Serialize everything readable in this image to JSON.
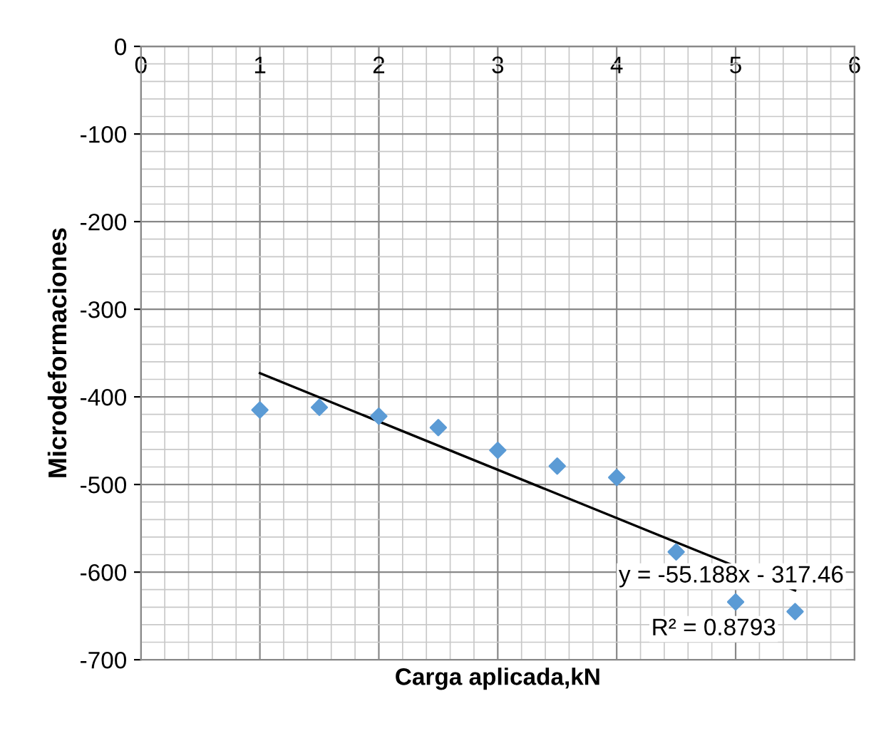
{
  "chart_data": {
    "type": "scatter",
    "xlabel": "Carga aplicada,kN",
    "ylabel": "Microdeformaciones",
    "x": [
      1,
      1.5,
      2,
      2.5,
      3,
      3.5,
      4,
      4.5,
      5,
      5.5
    ],
    "series": [
      {
        "color": "#5b9bd5",
        "marker": "diamond",
        "values": [
          -415,
          -412,
          -422,
          -435,
          -461,
          -479,
          -492,
          -577,
          -634,
          -645
        ]
      },
      {
        "type": "line",
        "color": "#000000",
        "marker": "none",
        "x": [
          1,
          5.5
        ],
        "values": [
          -373,
          -621
        ]
      }
    ],
    "annotations": [
      "y = -55.188x - 317.46",
      "R² = 0.8793"
    ],
    "xlim": [
      0,
      6
    ],
    "xticks": [
      0,
      1,
      2,
      3,
      4,
      5,
      6
    ],
    "ylim": [
      -700,
      0
    ],
    "yticks": [
      -700,
      -600,
      -500,
      -400,
      -300,
      -200,
      -100,
      0
    ],
    "grid": true,
    "legend": false
  }
}
